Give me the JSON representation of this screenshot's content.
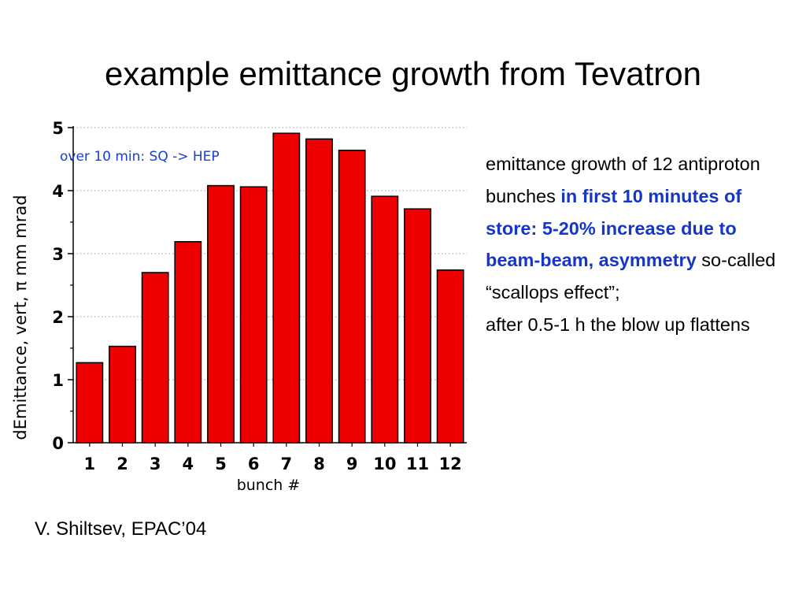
{
  "slide": {
    "title": "example emittance growth from Tevatron",
    "credit": "V. Shiltsev, EPAC’04",
    "side_text": {
      "t1": "emittance growth of 12 antiproton bunches ",
      "h1": "in first 10 minutes of store: 5-20% increase due to beam-beam, asymmetry",
      "t2": " so-called “scallops effect”;",
      "t3": "after 0.5-1 h the blow up flattens"
    }
  },
  "chart_data": {
    "type": "bar",
    "categories": [
      "1",
      "2",
      "3",
      "4",
      "5",
      "6",
      "7",
      "8",
      "9",
      "10",
      "11",
      "12"
    ],
    "values": [
      1.27,
      1.53,
      2.7,
      3.19,
      4.08,
      4.06,
      4.91,
      4.82,
      4.64,
      3.91,
      3.71,
      2.74
    ],
    "xlabel": "bunch #",
    "ylabel": "dEmittance, vert, π mm mrad",
    "ylim": [
      0,
      5
    ],
    "yticks": [
      "0",
      "1",
      "2",
      "3",
      "4",
      "5"
    ],
    "annotation": "over 10 min: SQ -> HEP",
    "bar_color": "#ee0000",
    "annotation_color": "#1a3fd0",
    "grid": "dotted horizontal"
  }
}
